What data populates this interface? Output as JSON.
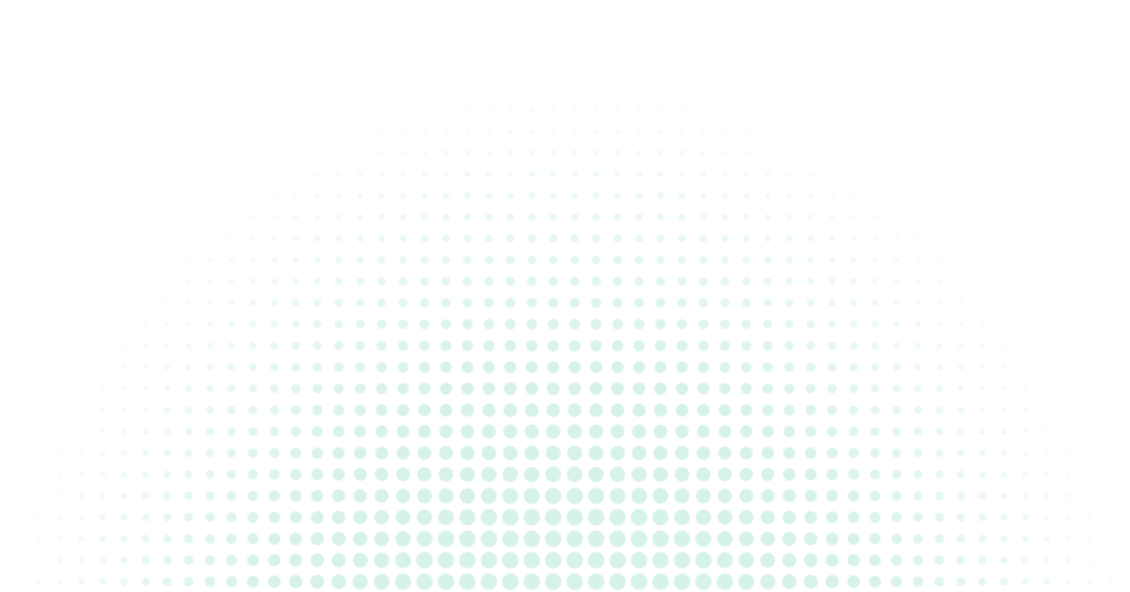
{
  "background": {
    "pattern": "halftone-dots",
    "dot_color": "#d6f2ea",
    "background_color": "#ffffff"
  }
}
